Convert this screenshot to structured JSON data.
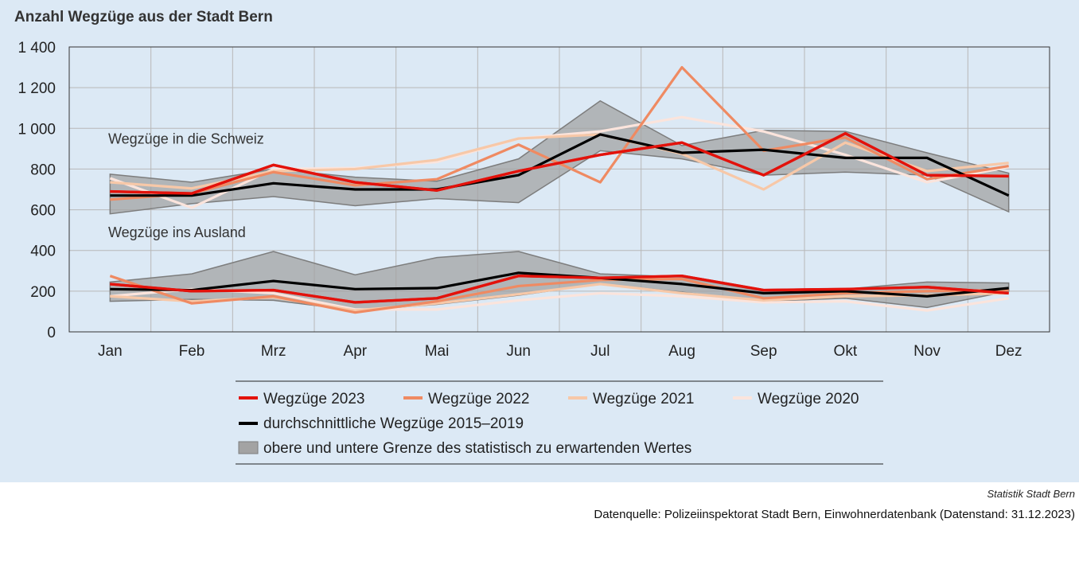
{
  "title": "Anzahl Wegzüge aus der Stadt Bern",
  "footer": {
    "org": "Statistik Stadt Bern",
    "source": "Datenquelle: Polizeiinspektorat Stadt Bern, Einwohnerdatenbank (Datenstand: 31.12.2023)"
  },
  "colors": {
    "panel_bg": "#dce9f5",
    "plot_bg": "#dce9f5",
    "grid": "#b8b8b8",
    "band_fill": "#a3a3a3",
    "band_edge": "#7d7d7d",
    "series_2023": "#e3120b",
    "series_2022": "#ef8a62",
    "series_2021": "#f7c8a8",
    "series_2020": "#fbe4dc",
    "average": "#000000"
  },
  "chart_data": {
    "type": "line",
    "categories": [
      "Jan",
      "Feb",
      "Mrz",
      "Apr",
      "Mai",
      "Jun",
      "Jul",
      "Aug",
      "Sep",
      "Okt",
      "Nov",
      "Dez"
    ],
    "ylim": [
      0,
      1400
    ],
    "yticks": [
      0,
      200,
      400,
      600,
      800,
      1000,
      1200,
      1400
    ],
    "ytick_labels": [
      "0",
      "200",
      "400",
      "600",
      "800",
      "1 000",
      "1 200",
      "1 400"
    ],
    "grid": true,
    "annotations": [
      {
        "text": "Wegzüge in die Schweiz",
        "x": "Jan",
        "y": 910
      },
      {
        "text": "Wegzüge ins Ausland",
        "x": "Jan",
        "y": 450
      }
    ],
    "groups": [
      {
        "band": {
          "upper": [
            775,
            735,
            800,
            760,
            740,
            850,
            1135,
            915,
            990,
            985,
            880,
            780
          ],
          "lower": [
            580,
            630,
            665,
            620,
            655,
            635,
            890,
            850,
            770,
            785,
            770,
            590
          ]
        },
        "average": [
          670,
          670,
          730,
          700,
          700,
          770,
          970,
          880,
          895,
          855,
          855,
          670
        ],
        "series": [
          {
            "name": "Wegzüge 2023",
            "values": [
              690,
              680,
              820,
              735,
              695,
              790,
              870,
              930,
              770,
              975,
              770,
              765
            ]
          },
          {
            "name": "Wegzüge 2022",
            "values": [
              650,
              680,
              785,
              720,
              750,
              920,
              735,
              1300,
              890,
              955,
              750,
              815
            ]
          },
          {
            "name": "Wegzüge 2021",
            "values": [
              735,
              705,
              790,
              800,
              845,
              950,
              970,
              875,
              700,
              930,
              790,
              830
            ]
          },
          {
            "name": "Wegzüge 2020",
            "values": [
              755,
              610,
              800,
              805,
              835,
              950,
              985,
              1055,
              985,
              870,
              735,
              810
            ]
          }
        ]
      },
      {
        "band": {
          "upper": [
            245,
            285,
            395,
            280,
            365,
            395,
            285,
            270,
            200,
            210,
            245,
            240
          ],
          "lower": [
            150,
            160,
            155,
            105,
            135,
            180,
            235,
            195,
            150,
            165,
            120,
            200
          ]
        },
        "average": [
          210,
          205,
          250,
          210,
          215,
          290,
          265,
          235,
          190,
          200,
          175,
          215
        ],
        "series": [
          {
            "name": "Wegzüge 2023",
            "values": [
              235,
              200,
              205,
              145,
              165,
              275,
              265,
              275,
              205,
              210,
              220,
              190
            ]
          },
          {
            "name": "Wegzüge 2022",
            "values": [
              275,
              140,
              175,
              95,
              150,
              225,
              255,
              260,
              165,
              190,
              200,
              205
            ]
          },
          {
            "name": "Wegzüge 2021",
            "values": [
              175,
              150,
              170,
              105,
              140,
              185,
              235,
              190,
              155,
              175,
              180,
              190
            ]
          },
          {
            "name": "Wegzüge 2020",
            "values": [
              175,
              210,
              190,
              110,
              110,
              155,
              190,
              175,
              145,
              150,
              105,
              165
            ]
          }
        ]
      }
    ],
    "legend": {
      "placement": "bottom",
      "series_labels": [
        "Wegzüge 2023",
        "Wegzüge 2022",
        "Wegzüge 2021",
        "Wegzüge 2020"
      ],
      "average_label": "durchschnittliche Wegzüge 2015–2019",
      "band_label": "obere und untere Grenze des statistisch zu erwartenden Wertes"
    }
  }
}
